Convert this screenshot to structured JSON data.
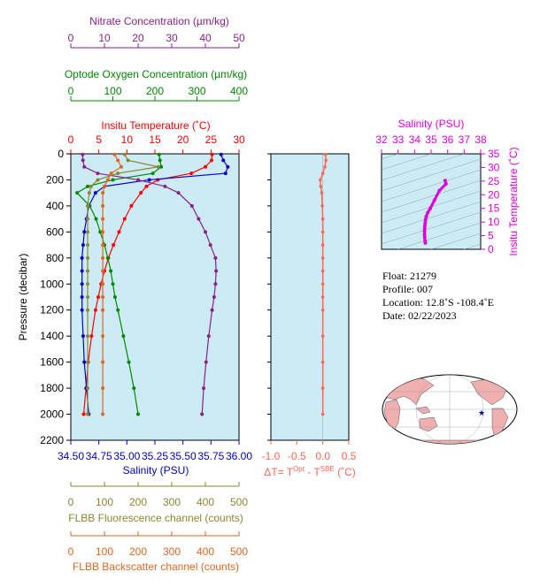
{
  "colors": {
    "panel_bg": "#cdebf5",
    "temperature": "#ff0000",
    "salinity": "#0000cc",
    "oxygen": "#008800",
    "nitrate": "#882288",
    "fluorescence": "#888833",
    "backscatter": "#dd6622",
    "delta_t": "#ff6655",
    "ts_salinity": "#dd00dd",
    "map_land": "#f0b0b0"
  },
  "axes": {
    "nitrate": {
      "label": "Nitrate Concentration (µm/kg)",
      "ticks": [
        "0",
        "10",
        "20",
        "30",
        "40",
        "50"
      ]
    },
    "oxygen": {
      "label": "Optode Oxygen Concentration (µm/kg)",
      "ticks": [
        "0",
        "100",
        "200",
        "300",
        "400"
      ]
    },
    "temperature": {
      "label": "Insitu Temperature (˚C)",
      "ticks": [
        "0",
        "5",
        "10",
        "15",
        "20",
        "25",
        "30"
      ]
    },
    "pressure": {
      "label": "Pressure (decibar)",
      "ticks": [
        "0",
        "200",
        "400",
        "600",
        "800",
        "1000",
        "1200",
        "1400",
        "1600",
        "1800",
        "2000",
        "2200"
      ]
    },
    "salinity": {
      "label": "Salinity (PSU)",
      "ticks": [
        "34.50",
        "34.75",
        "35.00",
        "35.25",
        "35.50",
        "35.75",
        "36.00"
      ]
    },
    "fluorescence": {
      "label": "FLBB Fluorescence channel (counts)",
      "ticks": [
        "0",
        "100",
        "200",
        "300",
        "400",
        "500"
      ]
    },
    "backscatter": {
      "label": "FLBB Backscatter channel (counts)",
      "ticks": [
        "0",
        "100",
        "200",
        "300",
        "400",
        "500"
      ]
    },
    "delta_t": {
      "ticks": [
        "-1.0",
        "-0.5",
        "0.0",
        "0.5"
      ],
      "label_prefix": "ΔT= T",
      "sup1": "Opt",
      "label_mid": " - T",
      "sup2": "SBE",
      "label_suffix": " (˚C)"
    },
    "ts_salinity": {
      "label": "Salinity (PSU)",
      "ticks": [
        "32",
        "33",
        "34",
        "35",
        "36",
        "37",
        "38"
      ]
    },
    "ts_temperature": {
      "label": "Insitu Temperature (˚C)",
      "ticks": [
        "0",
        "5",
        "10",
        "15",
        "20",
        "25",
        "30",
        "35"
      ]
    }
  },
  "info": {
    "float": "Float:  21279",
    "profile": "Profile:  007",
    "location": "Location:  12.8˚S  -108.4˚E",
    "date": "Date:  02/22/2023"
  },
  "chart_data": [
    {
      "type": "line",
      "title": "",
      "ylabel": "Pressure (decibar)",
      "ylim": [
        2200,
        0
      ],
      "pressure": [
        5,
        50,
        100,
        150,
        200,
        250,
        300,
        400,
        500,
        600,
        700,
        800,
        900,
        1000,
        1100,
        1200,
        1400,
        1600,
        1800,
        2000
      ],
      "series": [
        {
          "name": "Insitu Temperature (˚C)",
          "xlim": [
            0,
            30
          ],
          "values": [
            25.2,
            25.1,
            24.0,
            21.5,
            15.5,
            13.5,
            12.5,
            10.8,
            9.6,
            8.6,
            7.6,
            6.7,
            6.0,
            5.4,
            4.9,
            4.4,
            3.7,
            3.1,
            2.7,
            2.3
          ]
        },
        {
          "name": "Salinity (PSU)",
          "xlim": [
            34.5,
            36.0
          ],
          "values": [
            35.84,
            35.86,
            35.9,
            35.88,
            35.2,
            34.8,
            34.72,
            34.66,
            34.64,
            34.62,
            34.61,
            34.6,
            34.6,
            34.6,
            34.6,
            34.6,
            34.61,
            34.62,
            34.64,
            34.66
          ]
        },
        {
          "name": "Optode Oxygen Concentration (µm/kg)",
          "xlim": [
            0,
            400
          ],
          "values": [
            210,
            212,
            215,
            195,
            100,
            40,
            15,
            45,
            60,
            70,
            80,
            88,
            95,
            100,
            105,
            112,
            125,
            138,
            150,
            160
          ]
        },
        {
          "name": "Nitrate Concentration (µm/kg)",
          "xlim": [
            0,
            50
          ],
          "values": [
            3.5,
            3.6,
            4.0,
            8.0,
            20.0,
            28.0,
            32.0,
            36.0,
            38.0,
            40.0,
            41.5,
            43.0,
            43.2,
            43.0,
            42.6,
            42.0,
            41.0,
            40.2,
            39.5,
            39.0
          ]
        },
        {
          "name": "FLBB Fluorescence channel (counts)",
          "xlim": [
            0,
            500
          ],
          "values": [
            160,
            170,
            260,
            140,
            80,
            60,
            55,
            50,
            50,
            50,
            50,
            50,
            50,
            50,
            50,
            50,
            50,
            50,
            50,
            50
          ]
        },
        {
          "name": "FLBB Backscatter channel (counts)",
          "xlim": [
            0,
            500
          ],
          "values": [
            130,
            140,
            150,
            120,
            110,
            100,
            95,
            95,
            95,
            95,
            95,
            95,
            95,
            95,
            95,
            95,
            95,
            95,
            95,
            95
          ]
        }
      ]
    },
    {
      "type": "line",
      "title": "",
      "xlabel": "ΔT= TOpt - TSBE (˚C)",
      "xlim": [
        -1.0,
        0.5
      ],
      "ylim": [
        2200,
        0
      ],
      "pressure": [
        5,
        50,
        100,
        150,
        200,
        250,
        300,
        400,
        500,
        600,
        700,
        800,
        900,
        1000,
        1100,
        1200,
        1400,
        1600,
        1800,
        2000
      ],
      "values": [
        0.05,
        0.06,
        0.04,
        0.0,
        -0.05,
        -0.04,
        -0.02,
        -0.01,
        0.0,
        0.0,
        0.0,
        0.0,
        0.0,
        0.0,
        0.0,
        0.0,
        0.0,
        0.0,
        0.0,
        0.0
      ]
    },
    {
      "type": "line",
      "title": "",
      "xlabel": "Salinity (PSU)",
      "ylabel": "Insitu Temperature (˚C)",
      "xlim": [
        32,
        38
      ],
      "ylim": [
        0,
        35
      ],
      "salinity": [
        34.65,
        34.63,
        34.61,
        34.6,
        34.6,
        34.61,
        34.62,
        34.64,
        34.66,
        34.7,
        34.8,
        34.95,
        35.2,
        35.5,
        35.9,
        35.85
      ],
      "temperature": [
        2.3,
        3.1,
        4.4,
        5.4,
        6.7,
        7.6,
        8.6,
        9.6,
        10.8,
        12.0,
        13.5,
        15.0,
        18.0,
        21.5,
        24.0,
        25.2
      ]
    }
  ]
}
